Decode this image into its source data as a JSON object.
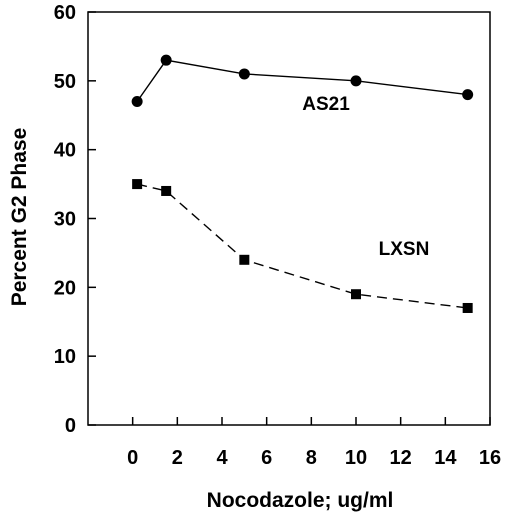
{
  "chart_data": {
    "type": "line",
    "title": "",
    "xlabel": "Nocodazole; ug/ml",
    "ylabel": "Percent G2 Phase",
    "xlim": [
      -2,
      16
    ],
    "ylim": [
      0,
      60
    ],
    "xticks": [
      0,
      2,
      4,
      6,
      8,
      10,
      12,
      14,
      16
    ],
    "yticks": [
      0,
      10,
      20,
      30,
      40,
      50,
      60
    ],
    "grid": false,
    "legend": "none",
    "series": [
      {
        "name": "AS21",
        "marker": "circle",
        "line_style": "solid",
        "color": "#000000",
        "x": [
          0.2,
          1.5,
          5,
          10,
          15
        ],
        "y": [
          47,
          53,
          51,
          50,
          48
        ]
      },
      {
        "name": "LXSN",
        "marker": "square",
        "line_style": "dashed",
        "color": "#000000",
        "x": [
          0.2,
          1.5,
          5,
          10,
          15
        ],
        "y": [
          35,
          34,
          24,
          19,
          17
        ]
      }
    ]
  }
}
